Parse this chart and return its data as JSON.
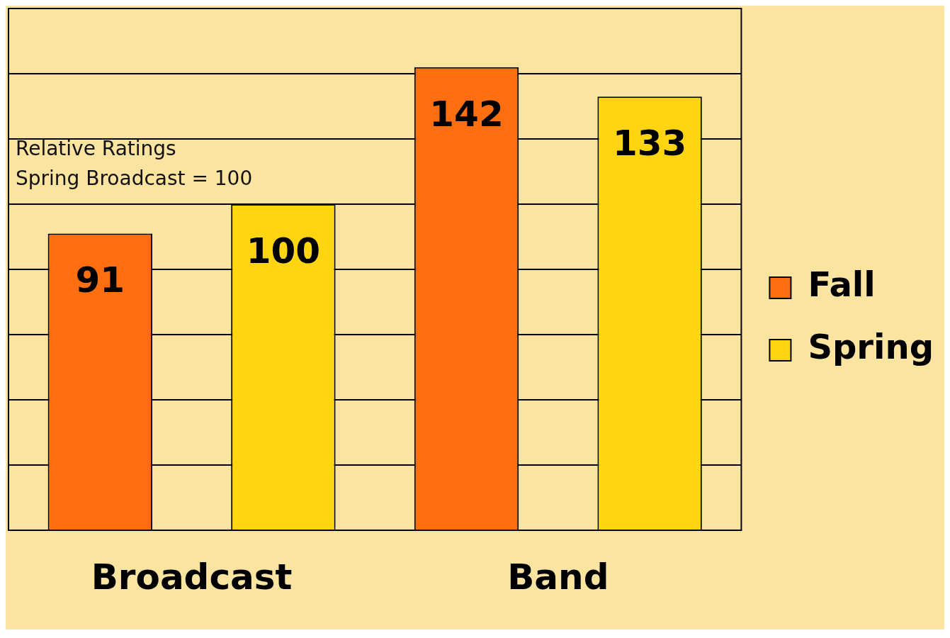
{
  "chart_data": {
    "type": "bar",
    "categories": [
      "Broadcast",
      "Band"
    ],
    "series": [
      {
        "name": "Fall",
        "color": "#ff6f0f",
        "values": [
          91,
          142
        ]
      },
      {
        "name": "Spring",
        "color": "#ffd511",
        "values": [
          100,
          133
        ]
      }
    ],
    "ylim": [
      0,
      160
    ],
    "yticks": [
      {
        "value": 0,
        "label": null
      },
      {
        "value": 20,
        "label": null
      },
      {
        "value": 40,
        "label": null
      },
      {
        "value": 60,
        "label": null
      },
      {
        "value": 80,
        "label": null
      },
      {
        "value": 100,
        "label": null
      },
      {
        "value": 120,
        "label": null
      },
      {
        "value": 140,
        "label": null
      },
      {
        "value": 160,
        "label": null
      }
    ],
    "tick_labels": "x",
    "grid": "y",
    "legend": "right",
    "data_labels": true,
    "annotations": [
      "Relative Ratings",
      "Spring Broadcast = 100"
    ]
  }
}
